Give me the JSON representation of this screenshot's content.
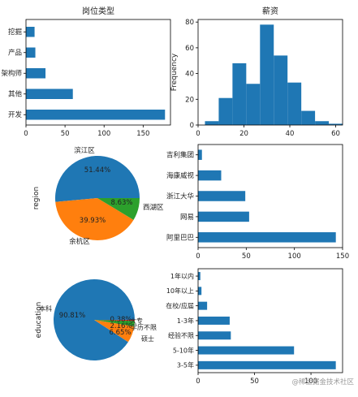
{
  "chart_data": [
    {
      "type": "bar",
      "orientation": "horizontal",
      "title": "岗位类型",
      "categories": [
        "开发",
        "其他",
        "架构师",
        "产品",
        "挖掘"
      ],
      "values": [
        178,
        60,
        25,
        12,
        11
      ],
      "xlim": [
        0,
        185
      ],
      "xticks": [
        "0",
        "50",
        "100",
        "150"
      ],
      "color": "#1f77b4"
    },
    {
      "type": "histogram",
      "title": "薪资",
      "ylabel": "Frequency",
      "bins": [
        [
          3,
          9
        ],
        [
          9,
          15
        ],
        [
          15,
          21
        ],
        [
          21,
          27
        ],
        [
          27,
          33
        ],
        [
          33,
          39
        ],
        [
          39,
          45
        ],
        [
          45,
          51
        ],
        [
          51,
          57
        ],
        [
          57,
          63
        ]
      ],
      "values": [
        3,
        21,
        48,
        32,
        78,
        54,
        33,
        11,
        3,
        1
      ],
      "xlim": [
        0,
        63
      ],
      "ylim": [
        0,
        82
      ],
      "xticks": [
        "0",
        "20",
        "40",
        "60"
      ],
      "yticks": [
        "0",
        "20",
        "40",
        "60",
        "80"
      ],
      "color": "#1f77b4"
    },
    {
      "type": "pie",
      "ylabel": "region",
      "slices": [
        {
          "label": "滨江区",
          "pct": 51.44,
          "pct_text": "51.44%",
          "color": "#1f77b4"
        },
        {
          "label": "余杭区",
          "pct": 39.93,
          "pct_text": "39.93%",
          "color": "#ff7f0e"
        },
        {
          "label": "西湖区",
          "pct": 8.63,
          "pct_text": "8.63%",
          "color": "#2ca02c"
        }
      ]
    },
    {
      "type": "bar",
      "orientation": "horizontal",
      "categories": [
        "阿里巴巴",
        "网易",
        "浙江大华",
        "海康威视",
        "吉利集团"
      ],
      "values": [
        143,
        53,
        49,
        24,
        4
      ],
      "xlim": [
        0,
        150
      ],
      "xticks": [
        "0",
        "50",
        "100",
        "150"
      ],
      "color": "#1f77b4"
    },
    {
      "type": "pie",
      "ylabel": "education",
      "slices": [
        {
          "label": "本科",
          "pct": 90.81,
          "pct_text": "90.81%",
          "color": "#1f77b4"
        },
        {
          "label": "硕士",
          "pct": 6.65,
          "pct_text": "6.65%",
          "color": "#ff7f0e"
        },
        {
          "label": "学历不限",
          "pct": 2.16,
          "pct_text": "2.16%",
          "color": "#2ca02c"
        },
        {
          "label": "大专",
          "pct": 0.38,
          "pct_text": "0.38%",
          "color": "#d62728"
        }
      ]
    },
    {
      "type": "bar",
      "orientation": "horizontal",
      "categories": [
        "3-5年",
        "5-10年",
        "经验不限",
        "1-3年",
        "在校/应届",
        "10年以上",
        "1年以内"
      ],
      "values": [
        122,
        85,
        29,
        28,
        8,
        3,
        2
      ],
      "xlim": [
        0,
        128
      ],
      "xticks": [
        "0",
        "50",
        "100"
      ],
      "color": "#1f77b4"
    }
  ],
  "watermark": "@稀土掘金技术社区"
}
